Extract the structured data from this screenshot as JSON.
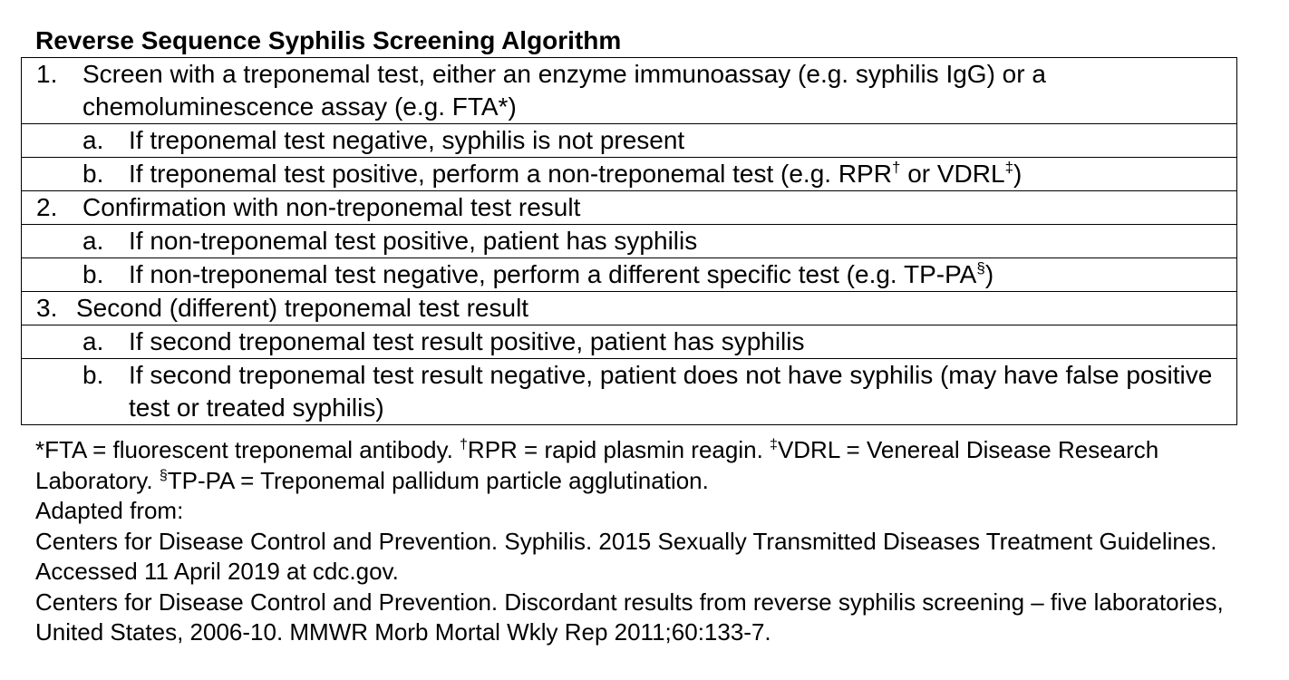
{
  "title": "Reverse Sequence Syphilis Screening Algorithm",
  "steps": [
    {
      "num": "1.",
      "text": "Screen with a treponemal test, either an enzyme immunoassay (e.g. syphilis IgG) or a chemoluminescence assay (e.g. FTA*)",
      "sub": [
        {
          "num": "a.",
          "text": "If treponemal test negative, syphilis is not present"
        },
        {
          "num": "b.",
          "text_1": "If treponemal test positive, perform a non-treponemal test (e.g. RPR",
          "sup_1": "†",
          "text_2": " or VDRL",
          "sup_2": "‡",
          "text_3": ")"
        }
      ]
    },
    {
      "num": "2.",
      "text": "Confirmation with non-treponemal test result",
      "sub": [
        {
          "num": "a.",
          "text": "If non-treponemal test positive, patient has syphilis"
        },
        {
          "num": "b.",
          "text_1": "If non-treponemal test negative, perform a different specific test (e.g. TP-PA",
          "sup_1": "§",
          "text_2": ")"
        }
      ]
    },
    {
      "num": "3.",
      "text": "Second (different) treponemal test result",
      "sub": [
        {
          "num": "a.",
          "text": "If second treponemal test result positive, patient has syphilis"
        },
        {
          "num": "b.",
          "text": "If second treponemal test result negative, patient does not have syphilis (may have false positive test or treated syphilis)"
        }
      ]
    }
  ],
  "footnotes": {
    "fta": "*FTA = fluorescent treponemal antibody.  ",
    "rpr_mark": "†",
    "rpr": "RPR = rapid plasmin reagin.  ",
    "vdrl_mark": "‡",
    "vdrl": "VDRL = Venereal Disease Research Laboratory.  ",
    "tppa_mark": "§",
    "tppa": "TP-PA = Treponemal pallidum particle agglutination."
  },
  "sources": {
    "adapted_from": "Adapted from:",
    "ref_1": "Centers for Disease Control and Prevention. Syphilis.  2015 Sexually Transmitted Diseases Treatment Guidelines.  Accessed 11 April 2019 at cdc.gov.",
    "ref_2": "Centers for Disease Control and Prevention.  Discordant results from reverse syphilis screening – five laboratories, United States, 2006-10.  MMWR Morb Mortal Wkly Rep 2011;60:133-7."
  }
}
